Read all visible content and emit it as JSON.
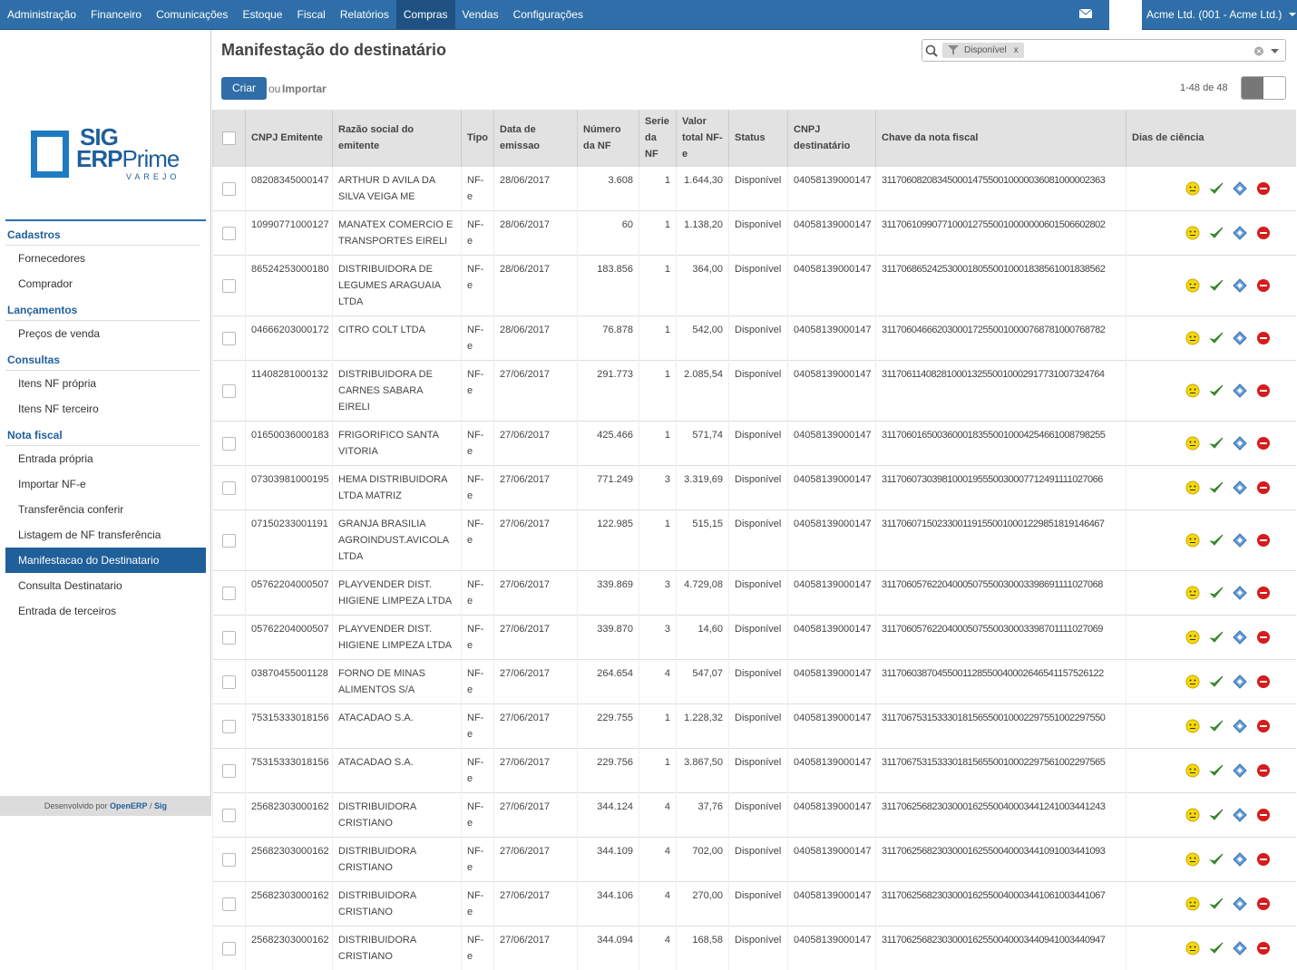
{
  "topbar": {
    "menu": [
      "Administração",
      "Financeiro",
      "Comunicações",
      "Estoque",
      "Fiscal",
      "Relatórios",
      "Compras",
      "Vendas",
      "Configurações"
    ],
    "company": "Acme Ltd. (001 - Acme Ltd.)"
  },
  "sidebar": {
    "logo": {
      "brand": "SIG",
      "product_a": "ERP",
      "product_b": "Prime",
      "edition": "VAREJO"
    },
    "sections": [
      {
        "title": "Cadastros",
        "items": [
          "Fornecedores",
          "Comprador"
        ]
      },
      {
        "title": "Lançamentos",
        "items": [
          "Preços de venda"
        ]
      },
      {
        "title": "Consultas",
        "items": [
          "Itens NF própria",
          "Itens NF terceiro"
        ]
      },
      {
        "title": "Nota fiscal",
        "items": [
          "Entrada própria",
          "Importar NF-e",
          "Transferência conferir",
          "Listagem de NF transferência",
          "Manifestacao do Destinatario",
          "Consulta Destinatario",
          "Entrada de terceiros"
        ]
      }
    ],
    "footer": {
      "text": "Desenvolvido por",
      "link1": "OpenERP",
      "sep": "/",
      "link2": "Sig"
    }
  },
  "main": {
    "title": "Manifestação do destinatário",
    "search": {
      "facet": "Disponível",
      "remove": "x"
    },
    "create": "Criar",
    "or": "ou",
    "import": "Importar",
    "pager": "1-48 de 48",
    "table": {
      "columns": [
        "CNPJ Emitente",
        "Razão social do emitente",
        "Tipo",
        "Data de emissao",
        "Número da NF",
        "Serie da NF",
        "Valor total NF-e",
        "Status",
        "CNPJ destinatário",
        "Chave da nota fiscal",
        "Dias de ciência"
      ],
      "rows": [
        [
          "08208345000147",
          "ARTHUR D AVILA DA SILVA VEIGA ME",
          "NF-e",
          "28/06/2017",
          "3.608",
          "1",
          "1.644,30",
          "Disponível",
          "04058139000147",
          "31170608208345000147550010000036081000002363"
        ],
        [
          "10990771000127",
          "MANATEX COMERCIO E TRANSPORTES EIRELI",
          "NF-e",
          "28/06/2017",
          "60",
          "1",
          "1.138,20",
          "Disponível",
          "04058139000147",
          "31170610990771000127550010000000601506602802"
        ],
        [
          "86524253000180",
          "DISTRIBUIDORA DE LEGUMES ARAGUAIA LTDA",
          "NF-e",
          "28/06/2017",
          "183.856",
          "1",
          "364,00",
          "Disponível",
          "04058139000147",
          "31170686524253000180550010001838561001838562"
        ],
        [
          "04666203000172",
          "CITRO COLT LTDA",
          "NF-e",
          "28/06/2017",
          "76.878",
          "1",
          "542,00",
          "Disponível",
          "04058139000147",
          "31170604666203000172550010000768781000768782"
        ],
        [
          "11408281000132",
          "DISTRIBUIDORA DE CARNES SABARA EIRELI",
          "NF-e",
          "27/06/2017",
          "291.773",
          "1",
          "2.085,54",
          "Disponível",
          "04058139000147",
          "31170611408281000132550010002917731007324764"
        ],
        [
          "01650036000183",
          "FRIGORIFICO SANTA VITORIA",
          "NF-e",
          "27/06/2017",
          "425.466",
          "1",
          "571,74",
          "Disponível",
          "04058139000147",
          "31170601650036000183550010004254661008798255"
        ],
        [
          "07303981000195",
          "HEMA DISTRIBUIDORA LTDA MATRIZ",
          "NF-e",
          "27/06/2017",
          "771.249",
          "3",
          "3.319,69",
          "Disponível",
          "04058139000147",
          "31170607303981000195550030007712491111027066"
        ],
        [
          "07150233001191",
          "GRANJA BRASILIA AGROINDUST.AVICOLA LTDA",
          "NF-e",
          "27/06/2017",
          "122.985",
          "1",
          "515,15",
          "Disponível",
          "04058139000147",
          "31170607150233001191550010001229851819146467"
        ],
        [
          "05762204000507",
          "PLAYVENDER DIST. HIGIENE LIMPEZA LTDA",
          "NF-e",
          "27/06/2017",
          "339.869",
          "3",
          "4.729,08",
          "Disponível",
          "04058139000147",
          "31170605762204000507550030003398691111027068"
        ],
        [
          "05762204000507",
          "PLAYVENDER DIST. HIGIENE LIMPEZA LTDA",
          "NF-e",
          "27/06/2017",
          "339.870",
          "3",
          "14,60",
          "Disponível",
          "04058139000147",
          "31170605762204000507550030003398701111027069"
        ],
        [
          "03870455001128",
          "FORNO DE MINAS ALIMENTOS S/A",
          "NF-e",
          "27/06/2017",
          "264.654",
          "4",
          "547,07",
          "Disponível",
          "04058139000147",
          "31170603870455001128550040002646541157526122"
        ],
        [
          "75315333018156",
          "ATACADAO S.A.",
          "NF-e",
          "27/06/2017",
          "229.755",
          "1",
          "1.228,32",
          "Disponível",
          "04058139000147",
          "31170675315333018156550010002297551002297550"
        ],
        [
          "75315333018156",
          "ATACADAO S.A.",
          "NF-e",
          "27/06/2017",
          "229.756",
          "1",
          "3.867,50",
          "Disponível",
          "04058139000147",
          "31170675315333018156550010002297561002297565"
        ],
        [
          "25682303000162",
          "DISTRIBUIDORA CRISTIANO",
          "NF-e",
          "27/06/2017",
          "344.124",
          "4",
          "37,76",
          "Disponível",
          "04058139000147",
          "31170625682303000162550040003441241003441243"
        ],
        [
          "25682303000162",
          "DISTRIBUIDORA CRISTIANO",
          "NF-e",
          "27/06/2017",
          "344.109",
          "4",
          "702,00",
          "Disponível",
          "04058139000147",
          "31170625682303000162550040003441091003441093"
        ],
        [
          "25682303000162",
          "DISTRIBUIDORA CRISTIANO",
          "NF-e",
          "27/06/2017",
          "344.106",
          "4",
          "270,00",
          "Disponível",
          "04058139000147",
          "31170625682303000162550040003441061003441067"
        ],
        [
          "25682303000162",
          "DISTRIBUIDORA CRISTIANO",
          "NF-e",
          "27/06/2017",
          "344.094",
          "4",
          "168,58",
          "Disponível",
          "04058139000147",
          "31170625682303000162550040003440941003440947"
        ]
      ]
    }
  }
}
